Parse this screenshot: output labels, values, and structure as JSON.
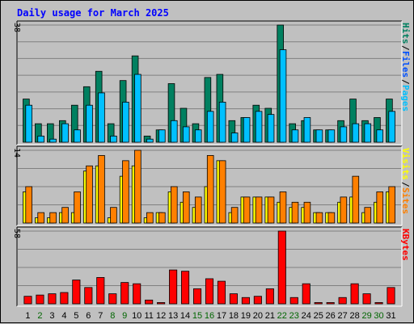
{
  "title": "Daily usage for March 2025",
  "colors": {
    "background": "#c0c0c0",
    "pages": "#00c0ff",
    "files": "#0050ff",
    "hits": "#008060",
    "sites": "#ff8000",
    "visits": "#ffff00",
    "kbytes": "#ff0000",
    "weekend_label": "#006600"
  },
  "chart_data": {
    "type": "bar",
    "title": "Daily usage for March 2025",
    "categories": [
      "1",
      "2",
      "3",
      "4",
      "5",
      "6",
      "7",
      "8",
      "9",
      "10",
      "11",
      "12",
      "13",
      "14",
      "15",
      "16",
      "17",
      "18",
      "19",
      "20",
      "21",
      "22",
      "23",
      "24",
      "25",
      "26",
      "27",
      "28",
      "29",
      "30",
      "31"
    ],
    "weekend_days": [
      "2",
      "8",
      "9",
      "15",
      "16",
      "22",
      "23",
      "29",
      "30"
    ],
    "panels": [
      {
        "ymax_label": "38",
        "ylim": [
          0,
          38
        ],
        "right_labels": [
          "Hits",
          "/",
          "Files",
          "/",
          "Pages"
        ],
        "series": [
          {
            "name": "Hits",
            "values": [
              14,
              6,
              6,
              7,
              12,
              18,
              23,
              6,
              20,
              28,
              2,
              4,
              19,
              11,
              6,
              21,
              22,
              7,
              8,
              12,
              11,
              38,
              6,
              7,
              4,
              4,
              7,
              14,
              7,
              8,
              14
            ]
          },
          {
            "name": "Files",
            "values": [
              12,
              2,
              1,
              6,
              4,
              12,
              16,
              2,
              13,
              22,
              1,
              4,
              7,
              5,
              4,
              10,
              13,
              3,
              8,
              10,
              9,
              30,
              4,
              8,
              4,
              4,
              5,
              6,
              6,
              4,
              10
            ]
          },
          {
            "name": "Pages",
            "values": [
              12,
              2,
              1,
              6,
              4,
              12,
              16,
              2,
              13,
              22,
              1,
              4,
              7,
              5,
              4,
              10,
              13,
              3,
              8,
              10,
              9,
              30,
              4,
              8,
              4,
              4,
              5,
              6,
              6,
              4,
              10
            ]
          }
        ]
      },
      {
        "ymax_label": "14",
        "ylim": [
          0,
          14
        ],
        "right_labels": [
          "Visits",
          "/",
          "Sites"
        ],
        "series": [
          {
            "name": "Visits",
            "values": [
              6,
              1,
              1,
              2,
              2,
              10,
              11,
              1,
              9,
              11,
              1,
              2,
              6,
              4,
              3,
              7,
              12,
              2,
              5,
              5,
              5,
              4,
              3,
              3,
              2,
              2,
              4,
              5,
              2,
              4,
              6
            ]
          },
          {
            "name": "Sites",
            "values": [
              7,
              2,
              2,
              3,
              6,
              11,
              13,
              3,
              12,
              14,
              2,
              2,
              7,
              6,
              5,
              13,
              12,
              3,
              5,
              5,
              5,
              6,
              4,
              4,
              2,
              2,
              5,
              9,
              3,
              6,
              7
            ]
          }
        ]
      },
      {
        "ymax_label": "58",
        "ylim": [
          0,
          58
        ],
        "right_labels": [
          "KBytes"
        ],
        "series": [
          {
            "name": "KBytes",
            "values": [
              6,
              7,
              8,
              9,
              19,
              13,
              21,
              8,
              17,
              16,
              3,
              1,
              27,
              26,
              12,
              20,
              18,
              8,
              5,
              6,
              12,
              58,
              5,
              16,
              1,
              1,
              5,
              16,
              8,
              1,
              13
            ]
          }
        ]
      }
    ]
  }
}
